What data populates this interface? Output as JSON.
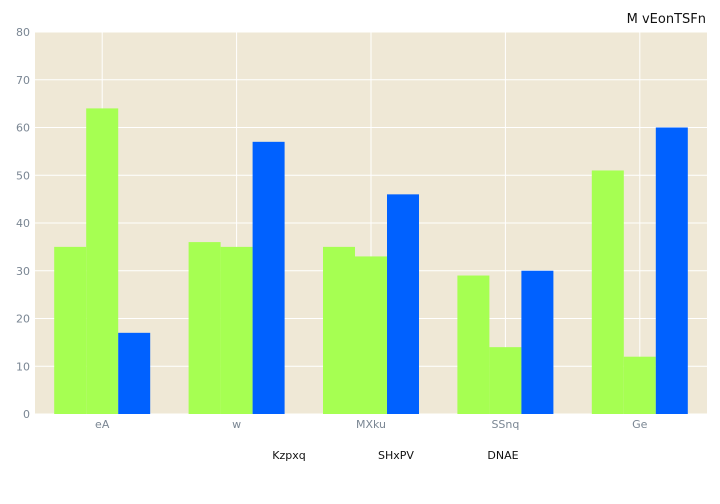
{
  "chart_data": {
    "type": "bar",
    "title": "M vEonTSFn",
    "categories": [
      "eA",
      "w",
      "MXku",
      "SSnq",
      "Ge"
    ],
    "series": [
      {
        "name": "Kzpxq",
        "values": [
          35,
          36,
          35,
          29,
          51
        ],
        "color": "#a6ff52"
      },
      {
        "name": "SHxPV",
        "values": [
          64,
          35,
          33,
          14,
          12
        ],
        "color": "#a6ff52"
      },
      {
        "name": "DNAE",
        "values": [
          17,
          57,
          46,
          30,
          60
        ],
        "color": "#0061ff"
      }
    ],
    "ylim": [
      0,
      80
    ],
    "yticks": [
      0,
      10,
      20,
      30,
      40,
      50,
      60,
      70,
      80
    ],
    "grid": true,
    "legend_position": "bottom-center",
    "background_color": "#efe8d6",
    "grid_color": "#ffffff"
  }
}
